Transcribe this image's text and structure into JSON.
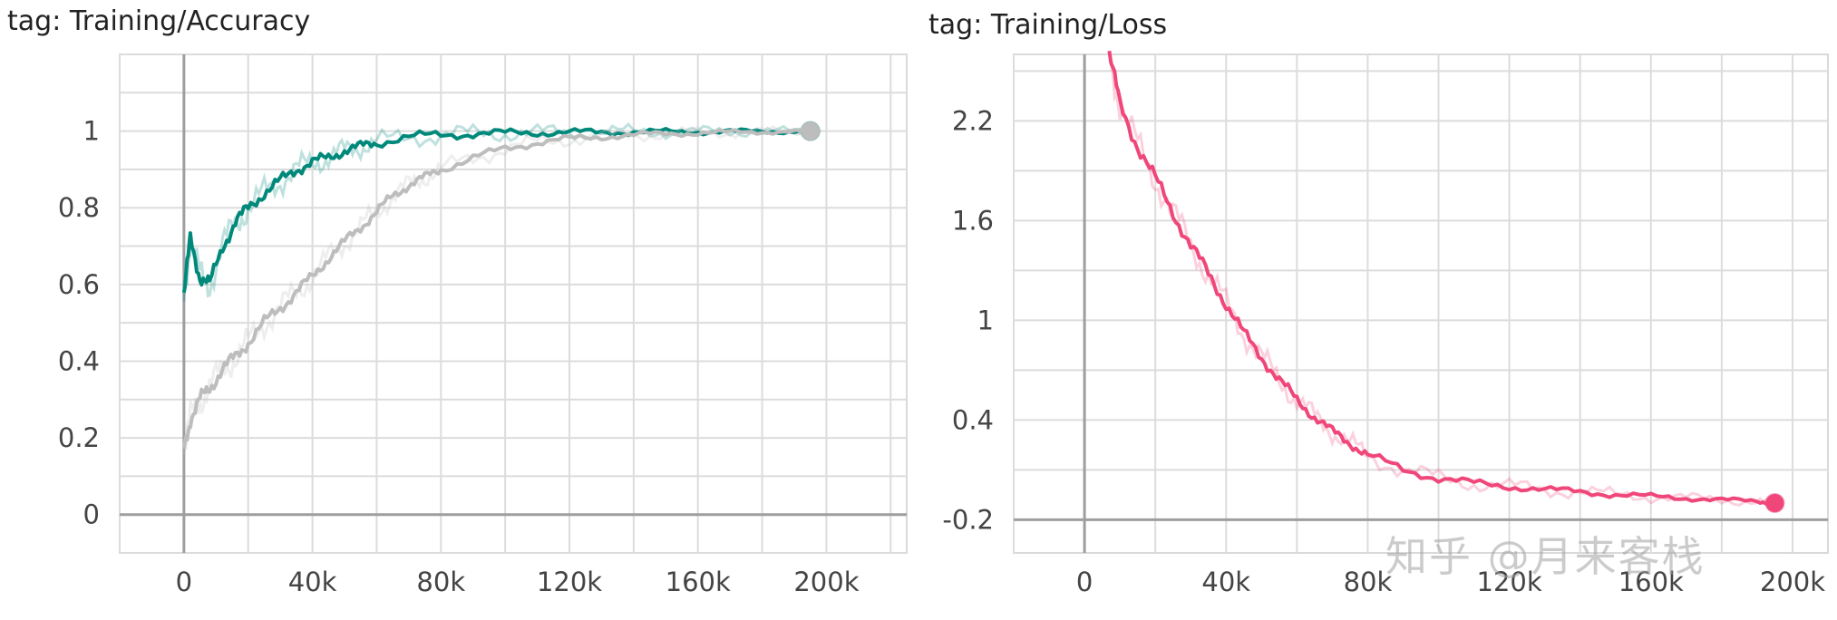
{
  "chart_data": [
    {
      "type": "line",
      "title": "tag: Training/Accuracy",
      "xlabel": "",
      "ylabel": "",
      "xlim": [
        -20000,
        225000
      ],
      "ylim": [
        -0.1,
        1.2
      ],
      "xticks": [
        0,
        40000,
        80000,
        120000,
        160000,
        200000
      ],
      "xtick_labels": [
        "0",
        "40k",
        "80k",
        "120k",
        "160k",
        "200k"
      ],
      "yticks": [
        0,
        0.2,
        0.4,
        0.6,
        0.8,
        1
      ],
      "ytick_labels": [
        "0",
        "0.2",
        "0.4",
        "0.6",
        "0.8",
        "1"
      ],
      "grid": true,
      "series": [
        {
          "color": "#00897b",
          "x": [
            0,
            2000,
            5000,
            8000,
            12000,
            16000,
            20000,
            25000,
            30000,
            35000,
            40000,
            45000,
            50000,
            55000,
            60000,
            70000,
            80000,
            90000,
            100000,
            110000,
            120000,
            130000,
            140000,
            150000,
            160000,
            170000,
            180000,
            190000,
            195000
          ],
          "y": [
            0.57,
            0.72,
            0.62,
            0.6,
            0.7,
            0.76,
            0.8,
            0.84,
            0.87,
            0.9,
            0.92,
            0.93,
            0.95,
            0.96,
            0.97,
            0.985,
            0.99,
            0.993,
            0.995,
            0.996,
            0.997,
            0.997,
            0.998,
            0.998,
            0.998,
            0.999,
            0.999,
            0.999,
            1.0
          ]
        },
        {
          "color": "#bdbdbd",
          "x": [
            0,
            2000,
            5000,
            8000,
            12000,
            16000,
            20000,
            25000,
            30000,
            35000,
            40000,
            45000,
            50000,
            55000,
            60000,
            65000,
            70000,
            75000,
            80000,
            90000,
            100000,
            110000,
            120000,
            130000,
            140000,
            150000,
            160000,
            170000,
            180000,
            190000,
            195000
          ],
          "y": [
            0.17,
            0.25,
            0.3,
            0.33,
            0.38,
            0.41,
            0.45,
            0.5,
            0.54,
            0.58,
            0.62,
            0.67,
            0.71,
            0.75,
            0.79,
            0.83,
            0.86,
            0.88,
            0.9,
            0.93,
            0.955,
            0.97,
            0.98,
            0.985,
            0.99,
            0.993,
            0.995,
            0.997,
            0.998,
            0.999,
            1.0
          ]
        }
      ]
    },
    {
      "type": "line",
      "title": "tag: Training/Loss",
      "xlabel": "",
      "ylabel": "",
      "xlim": [
        -20000,
        210000
      ],
      "ylim": [
        -0.4,
        2.6
      ],
      "xticks": [
        0,
        40000,
        80000,
        120000,
        160000,
        200000
      ],
      "xtick_labels": [
        "0",
        "40k",
        "80k",
        "120k",
        "160k",
        "200k"
      ],
      "yticks": [
        -0.2,
        0.4,
        1,
        1.6,
        2.2
      ],
      "ytick_labels": [
        "-0.2",
        "0.4",
        "1",
        "1.6",
        "2.2"
      ],
      "grid": true,
      "series": [
        {
          "color": "#f0477a",
          "x": [
            7000,
            10000,
            15000,
            20000,
            25000,
            30000,
            35000,
            40000,
            45000,
            50000,
            55000,
            60000,
            65000,
            70000,
            75000,
            80000,
            90000,
            100000,
            110000,
            120000,
            130000,
            140000,
            150000,
            160000,
            170000,
            180000,
            190000,
            195000
          ],
          "y": [
            2.6,
            2.3,
            2.05,
            1.85,
            1.65,
            1.45,
            1.28,
            1.1,
            0.92,
            0.78,
            0.64,
            0.52,
            0.42,
            0.33,
            0.26,
            0.19,
            0.1,
            0.05,
            0.02,
            0.0,
            -0.02,
            -0.03,
            -0.05,
            -0.06,
            -0.07,
            -0.08,
            -0.09,
            -0.1
          ]
        }
      ]
    }
  ],
  "watermark": "知乎 @月来客栈"
}
